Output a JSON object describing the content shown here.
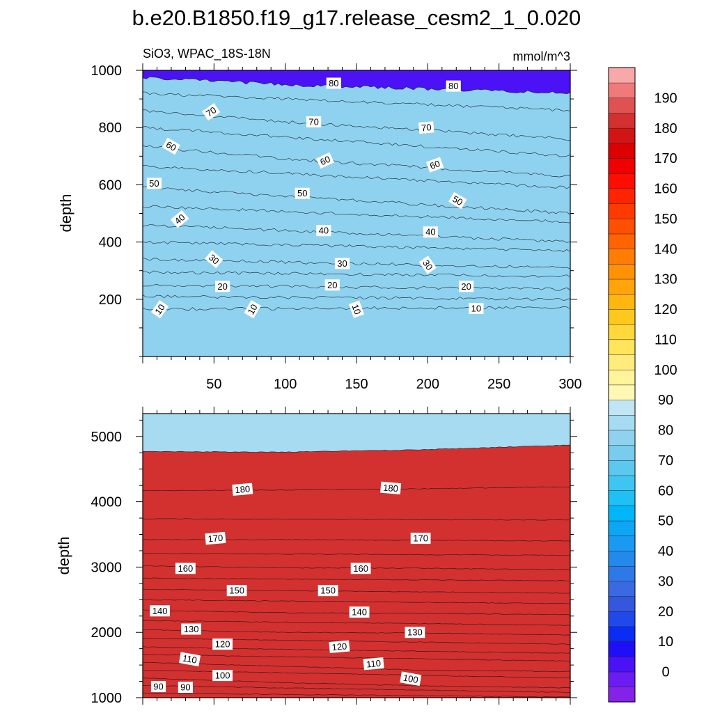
{
  "title": "b.e20.B1850.f19_g17.release_cesm2_1_0.020",
  "chart_data": [
    {
      "type": "contour",
      "panel": "upper",
      "subtitle_left": "SiO3, WPAC_18S-18N",
      "subtitle_right": "mmol/m^3",
      "xlabel": "",
      "ylabel": "depth",
      "xlim": [
        0,
        300
      ],
      "ylim": [
        1000,
        0
      ],
      "x_ticks": [
        50,
        100,
        150,
        200,
        250,
        300
      ],
      "y_ticks": [
        200,
        400,
        600,
        800,
        1000
      ],
      "contour_levels": [
        10,
        20,
        30,
        40,
        50,
        60,
        70,
        80
      ],
      "surfaces": [
        {
          "level": 5,
          "x": [
            0,
            300
          ],
          "depth": [
            125,
            115
          ]
        },
        {
          "level": 10,
          "x": [
            0,
            100,
            200,
            300
          ],
          "depth": [
            165,
            168,
            170,
            170
          ]
        },
        {
          "level": 15,
          "x": [
            0,
            300
          ],
          "depth": [
            210,
            200
          ]
        },
        {
          "level": 20,
          "x": [
            0,
            100,
            200,
            300
          ],
          "depth": [
            250,
            245,
            240,
            235
          ]
        },
        {
          "level": 25,
          "x": [
            0,
            300
          ],
          "depth": [
            295,
            280
          ]
        },
        {
          "level": 30,
          "x": [
            0,
            100,
            200,
            300
          ],
          "depth": [
            340,
            330,
            320,
            310
          ]
        },
        {
          "level": 35,
          "x": [
            0,
            300
          ],
          "depth": [
            400,
            370
          ]
        },
        {
          "level": 40,
          "x": [
            0,
            100,
            200,
            300
          ],
          "depth": [
            460,
            440,
            420,
            400
          ]
        },
        {
          "level": 45,
          "x": [
            0,
            300
          ],
          "depth": [
            525,
            470
          ]
        },
        {
          "level": 50,
          "x": [
            0,
            100,
            200,
            300
          ],
          "depth": [
            590,
            560,
            530,
            500
          ]
        },
        {
          "level": 55,
          "x": [
            0,
            300
          ],
          "depth": [
            665,
            590
          ]
        },
        {
          "level": 60,
          "x": [
            0,
            100,
            200,
            300
          ],
          "depth": [
            735,
            690,
            660,
            630
          ]
        },
        {
          "level": 65,
          "x": [
            0,
            300
          ],
          "depth": [
            800,
            700
          ]
        },
        {
          "level": 70,
          "x": [
            0,
            100,
            200,
            300
          ],
          "depth": [
            860,
            820,
            790,
            760
          ]
        },
        {
          "level": 75,
          "x": [
            0,
            300
          ],
          "depth": [
            920,
            860
          ]
        },
        {
          "level": 80,
          "x": [
            0,
            100,
            200,
            300
          ],
          "depth": [
            975,
            950,
            935,
            920
          ]
        }
      ],
      "labels": [
        {
          "text": "10",
          "x": 12,
          "depth": 165,
          "angle": -55
        },
        {
          "text": "10",
          "x": 77,
          "depth": 165,
          "angle": -60
        },
        {
          "text": "10",
          "x": 150,
          "depth": 165,
          "angle": 70
        },
        {
          "text": "10",
          "x": 234,
          "depth": 168,
          "angle": 0
        },
        {
          "text": "20",
          "x": 56,
          "depth": 245,
          "angle": 0
        },
        {
          "text": "20",
          "x": 133,
          "depth": 250,
          "angle": 0
        },
        {
          "text": "20",
          "x": 227,
          "depth": 245,
          "angle": 0
        },
        {
          "text": "30",
          "x": 50,
          "depth": 340,
          "angle": 40
        },
        {
          "text": "30",
          "x": 140,
          "depth": 325,
          "angle": 0
        },
        {
          "text": "30",
          "x": 200,
          "depth": 320,
          "angle": 55
        },
        {
          "text": "40",
          "x": 26,
          "depth": 480,
          "angle": -40
        },
        {
          "text": "40",
          "x": 127,
          "depth": 440,
          "angle": 0
        },
        {
          "text": "40",
          "x": 202,
          "depth": 435,
          "angle": 0
        },
        {
          "text": "50",
          "x": 8,
          "depth": 605,
          "angle": 0
        },
        {
          "text": "50",
          "x": 112,
          "depth": 570,
          "angle": 0
        },
        {
          "text": "50",
          "x": 221,
          "depth": 545,
          "angle": 30
        },
        {
          "text": "60",
          "x": 20,
          "depth": 735,
          "angle": 30
        },
        {
          "text": "60",
          "x": 128,
          "depth": 685,
          "angle": -25
        },
        {
          "text": "60",
          "x": 205,
          "depth": 670,
          "angle": -20
        },
        {
          "text": "70",
          "x": 48,
          "depth": 855,
          "angle": -35
        },
        {
          "text": "70",
          "x": 120,
          "depth": 820,
          "angle": 0
        },
        {
          "text": "70",
          "x": 199,
          "depth": 800,
          "angle": -5
        },
        {
          "text": "80",
          "x": 134,
          "depth": 955,
          "angle": 0
        },
        {
          "text": "80",
          "x": 218,
          "depth": 945,
          "angle": 0
        }
      ]
    },
    {
      "type": "contour",
      "panel": "lower",
      "xlabel": "",
      "ylabel": "depth",
      "xlim": [
        0,
        300
      ],
      "ylim": [
        5350,
        1000
      ],
      "y_ticks": [
        1000,
        2000,
        3000,
        4000,
        5000
      ],
      "contour_levels": [
        90,
        100,
        110,
        120,
        130,
        140,
        150,
        160,
        170,
        180,
        190
      ],
      "surfaces": [
        {
          "level": 85,
          "x": [
            0,
            300
          ],
          "depth": [
            1000,
            1000
          ]
        },
        {
          "level": 90,
          "x": [
            0,
            100,
            200,
            300
          ],
          "depth": [
            1070,
            1050,
            1030,
            1010
          ]
        },
        {
          "level": 95,
          "x": [
            0,
            300
          ],
          "depth": [
            1185,
            1080
          ]
        },
        {
          "level": 100,
          "x": [
            0,
            100,
            200,
            300
          ],
          "depth": [
            1300,
            1230,
            1180,
            1150
          ]
        },
        {
          "level": 105,
          "x": [
            0,
            300
          ],
          "depth": [
            1420,
            1300
          ]
        },
        {
          "level": 110,
          "x": [
            0,
            100,
            200,
            300
          ],
          "depth": [
            1540,
            1480,
            1420,
            1400
          ]
        },
        {
          "level": 115,
          "x": [
            0,
            300
          ],
          "depth": [
            1660,
            1560
          ]
        },
        {
          "level": 120,
          "x": [
            0,
            100,
            200,
            300
          ],
          "depth": [
            1780,
            1740,
            1710,
            1680
          ]
        },
        {
          "level": 125,
          "x": [
            0,
            300
          ],
          "depth": [
            1910,
            1820
          ]
        },
        {
          "level": 130,
          "x": [
            0,
            100,
            200,
            300
          ],
          "depth": [
            2040,
            2000,
            1990,
            1960
          ]
        },
        {
          "level": 135,
          "x": [
            0,
            300
          ],
          "depth": [
            2180,
            2110
          ]
        },
        {
          "level": 140,
          "x": [
            0,
            100,
            200,
            300
          ],
          "depth": [
            2340,
            2300,
            2290,
            2270
          ]
        },
        {
          "level": 145,
          "x": [
            0,
            300
          ],
          "depth": [
            2500,
            2440
          ]
        },
        {
          "level": 150,
          "x": [
            0,
            100,
            200,
            300
          ],
          "depth": [
            2660,
            2640,
            2620,
            2600
          ]
        },
        {
          "level": 155,
          "x": [
            0,
            300
          ],
          "depth": [
            2830,
            2790
          ]
        },
        {
          "level": 160,
          "x": [
            0,
            100,
            200,
            300
          ],
          "depth": [
            3020,
            2990,
            2980,
            2960
          ]
        },
        {
          "level": 165,
          "x": [
            0,
            300
          ],
          "depth": [
            3210,
            3180
          ]
        },
        {
          "level": 170,
          "x": [
            0,
            100,
            200,
            300
          ],
          "depth": [
            3420,
            3420,
            3410,
            3400
          ]
        },
        {
          "level": 175,
          "x": [
            0,
            300
          ],
          "depth": [
            3740,
            3720
          ]
        },
        {
          "level": 180,
          "x": [
            0,
            100,
            200,
            300
          ],
          "depth": [
            4170,
            4180,
            4200,
            4230
          ]
        },
        {
          "level": 185,
          "x": [
            0,
            100,
            200,
            300
          ],
          "depth": [
            4770,
            4760,
            4800,
            4870
          ]
        }
      ],
      "labels": [
        {
          "text": "90",
          "x": 11,
          "depth": 1170,
          "angle": 0
        },
        {
          "text": "90",
          "x": 30,
          "depth": 1160,
          "angle": 0
        },
        {
          "text": "100",
          "x": 56,
          "depth": 1340,
          "angle": 0
        },
        {
          "text": "100",
          "x": 188,
          "depth": 1290,
          "angle": 10
        },
        {
          "text": "110",
          "x": 33,
          "depth": 1590,
          "angle": 10
        },
        {
          "text": "110",
          "x": 162,
          "depth": 1520,
          "angle": -5
        },
        {
          "text": "120",
          "x": 56,
          "depth": 1820,
          "angle": 0
        },
        {
          "text": "120",
          "x": 138,
          "depth": 1780,
          "angle": -5
        },
        {
          "text": "130",
          "x": 34,
          "depth": 2050,
          "angle": 0
        },
        {
          "text": "130",
          "x": 191,
          "depth": 2000,
          "angle": 0
        },
        {
          "text": "140",
          "x": 12,
          "depth": 2330,
          "angle": 0
        },
        {
          "text": "140",
          "x": 152,
          "depth": 2310,
          "angle": 0
        },
        {
          "text": "150",
          "x": 66,
          "depth": 2640,
          "angle": 0
        },
        {
          "text": "150",
          "x": 130,
          "depth": 2640,
          "angle": 0
        },
        {
          "text": "160",
          "x": 30,
          "depth": 2980,
          "angle": 0
        },
        {
          "text": "160",
          "x": 153,
          "depth": 2980,
          "angle": 0
        },
        {
          "text": "170",
          "x": 51,
          "depth": 3440,
          "angle": -5
        },
        {
          "text": "170",
          "x": 195,
          "depth": 3440,
          "angle": 0
        },
        {
          "text": "180",
          "x": 70,
          "depth": 4190,
          "angle": -5
        },
        {
          "text": "180",
          "x": 174,
          "depth": 4210,
          "angle": 5
        }
      ]
    }
  ],
  "colorbar": {
    "min": -5,
    "max": 195,
    "step": 5,
    "labels": [
      0,
      10,
      20,
      30,
      40,
      50,
      60,
      70,
      80,
      90,
      100,
      110,
      120,
      130,
      140,
      150,
      160,
      170,
      180,
      190
    ],
    "colors": [
      "#8422e8",
      "#6b1cf2",
      "#4a12f5",
      "#1f0ff6",
      "#0a2cf5",
      "#1f49ea",
      "#3557e0",
      "#3a6ae2",
      "#2e79e8",
      "#238aec",
      "#1a9af2",
      "#0ca6f5",
      "#00b5f8",
      "#1ec0f5",
      "#3ec5f0",
      "#5cc8ef",
      "#78ccee",
      "#8fd2f0",
      "#a7dbf2",
      "#c0e6f5",
      "#fff8b4",
      "#fff49a",
      "#ffec7c",
      "#ffe45c",
      "#ffd83a",
      "#ffc81e",
      "#ffb70f",
      "#ffa40a",
      "#ff9105",
      "#ff7d02",
      "#ff6400",
      "#ff4f00",
      "#ff3a00",
      "#ff2400",
      "#ff0d00",
      "#f00000",
      "#dc0000",
      "#d11414",
      "#d33030",
      "#e05252",
      "#f07a7a",
      "#f8a8a8"
    ]
  }
}
